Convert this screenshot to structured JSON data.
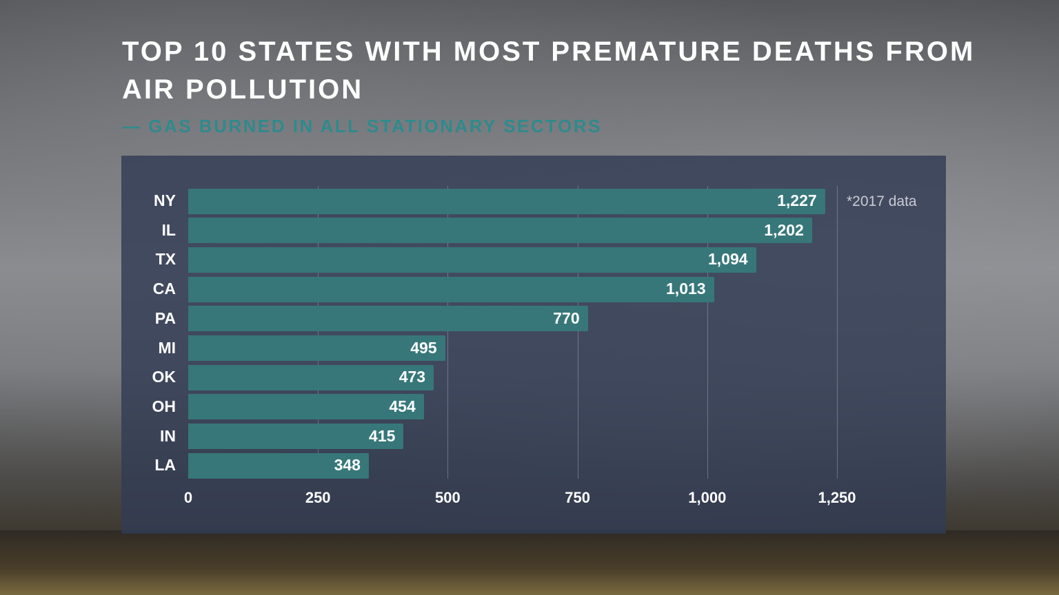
{
  "title": "TOP 10 STATES WITH MOST PREMATURE DEATHS FROM AIR POLLUTION",
  "subtitle": "— GAS BURNED IN ALL STATIONARY SECTORS",
  "note": "*2017 data",
  "colors": {
    "bar": "#37777a",
    "panel": "#323c54",
    "subtitle": "#2f8a8c"
  },
  "chart_data": {
    "type": "bar",
    "orientation": "horizontal",
    "title": "TOP 10 STATES WITH MOST PREMATURE DEATHS FROM AIR POLLUTION",
    "subtitle": "— GAS BURNED IN ALL STATIONARY SECTORS",
    "categories": [
      "NY",
      "IL",
      "TX",
      "CA",
      "PA",
      "MI",
      "OK",
      "OH",
      "IN",
      "LA"
    ],
    "values": [
      1227,
      1202,
      1094,
      1013,
      770,
      495,
      473,
      454,
      415,
      348
    ],
    "value_labels": [
      "1,227",
      "1,202",
      "1,094",
      "1,013",
      "770",
      "495",
      "473",
      "454",
      "415",
      "348"
    ],
    "xlim": [
      0,
      1250
    ],
    "xticks": [
      0,
      250,
      500,
      750,
      1000,
      1250
    ],
    "xtick_labels": [
      "0",
      "250",
      "500",
      "750",
      "1,000",
      "1,250"
    ],
    "grid": true,
    "annotation": "*2017 data"
  }
}
